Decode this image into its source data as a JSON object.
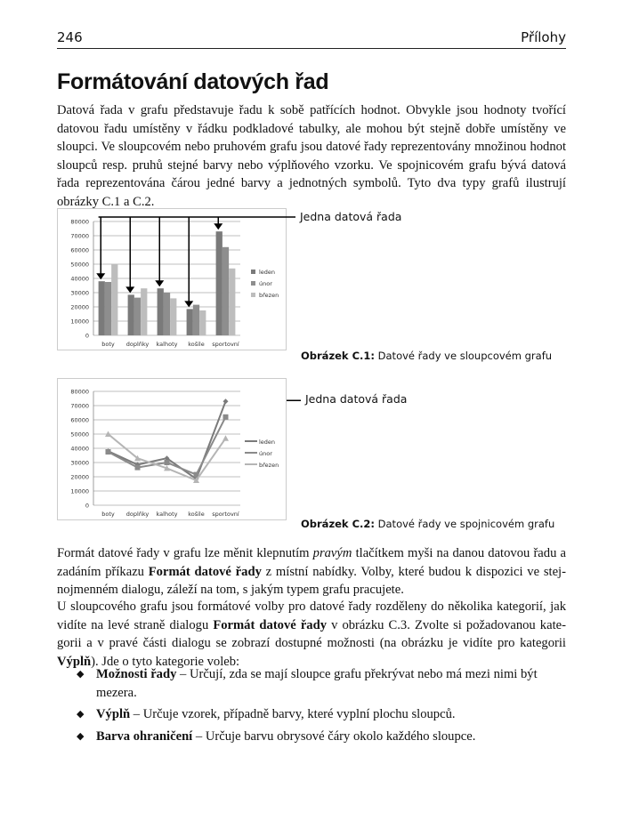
{
  "header": {
    "page_number": "246",
    "section": "Přílohy"
  },
  "title": "Formátování datových řad",
  "intro": "Datová řada v grafu představuje řadu k sobě patřících hodnot. Obvykle jsou hodnoty tvoří­cí datovou řadu umístěny v řádku podkladové tabulky, ale mohou být stejně dobře umístěny ve sloupci. Ve sloupcovém nebo pruhovém grafu jsou datové řady reprezentovány množinou hodnot sloupců resp. pruhů stejné barvy nebo výplňového vzorku. Ve spojnicovém grafu bývá datová řada reprezentována čárou jedné barvy a jednotných symbolů. Tyto dva typy grafů ilustrují obrázky C.1 a C.2.",
  "figure1": {
    "callout": "Jedna datová řada",
    "caption_label": "Obrázek C.1:",
    "caption_text": " Datové řady ve sloupcovém grafu"
  },
  "figure2": {
    "callout": "Jedna datová řada",
    "caption_label": "Obrázek C.2:",
    "caption_text": " Datové řady ve spojnicovém grafu"
  },
  "chart_data": [
    {
      "type": "bar",
      "categories": [
        "boty",
        "doplňky",
        "kalhoty",
        "košile",
        "sportovní"
      ],
      "ylim": [
        0,
        80000
      ],
      "yticks": [
        0,
        10000,
        20000,
        30000,
        40000,
        50000,
        60000,
        70000,
        80000
      ],
      "grid": true,
      "legend": "right",
      "series": [
        {
          "name": "leden",
          "values": [
            38000,
            28500,
            33000,
            18500,
            73000
          ],
          "color": "#7a7a7a"
        },
        {
          "name": "únor",
          "values": [
            37500,
            26500,
            30000,
            21500,
            62000
          ],
          "color": "#8e8e8e"
        },
        {
          "name": "březen",
          "values": [
            50000,
            33000,
            26000,
            17500,
            47000
          ],
          "color": "#bdbdbd"
        }
      ]
    },
    {
      "type": "line",
      "categories": [
        "boty",
        "doplňky",
        "kalhoty",
        "košile",
        "sportovní"
      ],
      "ylim": [
        0,
        80000
      ],
      "yticks": [
        0,
        10000,
        20000,
        30000,
        40000,
        50000,
        60000,
        70000,
        80000
      ],
      "grid": true,
      "legend": "right",
      "series": [
        {
          "name": "leden",
          "values": [
            38000,
            28500,
            33000,
            18500,
            73000
          ],
          "color": "#7a7a7a",
          "marker": "diamond"
        },
        {
          "name": "únor",
          "values": [
            37500,
            26500,
            30000,
            21500,
            62000
          ],
          "color": "#8a8a8a",
          "marker": "square"
        },
        {
          "name": "březen",
          "values": [
            50000,
            33000,
            26000,
            17500,
            47000
          ],
          "color": "#b5b5b5",
          "marker": "triangle"
        }
      ]
    }
  ],
  "p2": {
    "a": "Formát datové řady v grafu lze měnit klepnutím ",
    "b": "pravým",
    "c": " tlačítkem myši na danou datovou řadu a zadáním příkazu ",
    "d": "Formát datové řady",
    "e": " z místní nabídky. Volby, které budou k dispozici ve stej­nojmenném dialogu, záleží na tom, s jakým typem grafu pracujete."
  },
  "p3": {
    "a": "U sloupcového grafu jsou formátové volby pro datové řady rozděleny do několika kategorií, jak vidíte na levé straně dialogu ",
    "b": "Formát datové řady",
    "c": " v obrázku C.3. Zvolte si požadovanou kate­gorii a v pravé části dialogu se zobrazí dostupné možnosti (na obrázku je vidíte pro kategorii ",
    "d": "Výplň",
    "e": "). Jde o tyto kategorie voleb:"
  },
  "bullets": [
    {
      "term": "Možnosti řady",
      "text": " – Určují, zda se mají sloupce grafu překrývat nebo má mezi nimi být mezera."
    },
    {
      "term": "Výplň",
      "text": " – Určuje vzorek, případně barvy, které vyplní plochu sloupců."
    },
    {
      "term": "Barva ohraničení",
      "text": " – Určuje barvu obrysové čáry okolo každého sloupce."
    }
  ]
}
